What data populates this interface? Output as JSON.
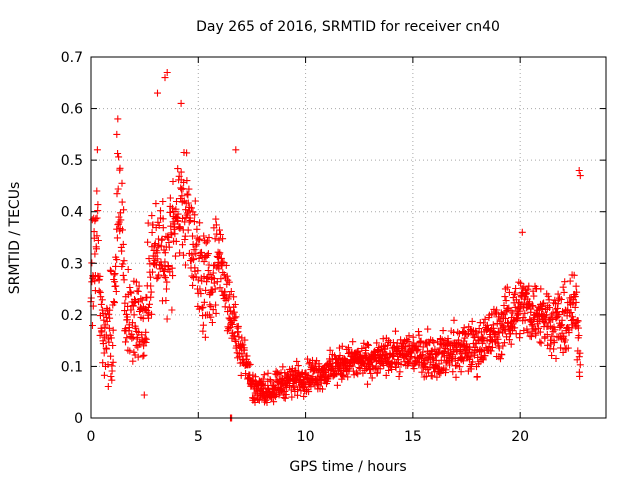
{
  "chart_data": {
    "type": "scatter",
    "title": "Day 265 of 2016, SRMTID for receiver cn40",
    "xlabel": "GPS time / hours",
    "ylabel": "SRMTID / TECUs",
    "xlim": [
      0,
      24
    ],
    "ylim": [
      0,
      0.7
    ],
    "xticks": [
      0,
      5,
      10,
      15,
      20
    ],
    "yticks": [
      0,
      0.1,
      0.2,
      0.3,
      0.4,
      0.5,
      0.6,
      0.7
    ],
    "xtick_labels": [
      "0",
      "5",
      "10",
      "15",
      "20"
    ],
    "ytick_labels": [
      "0",
      "0.1",
      "0.2",
      "0.3",
      "0.4",
      "0.5",
      "0.6",
      "0.7"
    ],
    "grid": true,
    "marker": "+",
    "marker_color": "#ff0000",
    "series": [
      {
        "name": "SRMTID",
        "profile": {
          "x": [
            0,
            0.3,
            0.5,
            1.0,
            1.3,
            1.6,
            2.0,
            2.5,
            3.0,
            3.5,
            4.0,
            4.5,
            5.0,
            5.5,
            6.0,
            6.5,
            6.9,
            7.2,
            7.5,
            8.0,
            9.0,
            10.0,
            11.0,
            12.0,
            13.0,
            14.0,
            15.0,
            16.0,
            17.0,
            18.0,
            19.0,
            20.0,
            21.0,
            22.0,
            22.6,
            22.8
          ],
          "y": [
            0.3,
            0.35,
            0.17,
            0.15,
            0.45,
            0.2,
            0.2,
            0.18,
            0.35,
            0.3,
            0.4,
            0.42,
            0.28,
            0.25,
            0.32,
            0.2,
            0.15,
            0.12,
            0.06,
            0.05,
            0.07,
            0.08,
            0.09,
            0.11,
            0.11,
            0.12,
            0.13,
            0.12,
            0.13,
            0.14,
            0.17,
            0.22,
            0.2,
            0.18,
            0.22,
            0.11
          ]
        },
        "spread": {
          "x": [
            0,
            5,
            6.9,
            7.5,
            14,
            19,
            22.8
          ],
          "y": [
            0.16,
            0.16,
            0.08,
            0.04,
            0.05,
            0.08,
            0.1
          ]
        },
        "n_points": 1800,
        "outliers": [
          {
            "x": 3.55,
            "y": 0.67
          },
          {
            "x": 3.45,
            "y": 0.66
          },
          {
            "x": 3.1,
            "y": 0.63
          },
          {
            "x": 4.2,
            "y": 0.61
          },
          {
            "x": 1.25,
            "y": 0.58
          },
          {
            "x": 1.2,
            "y": 0.55
          },
          {
            "x": 0.3,
            "y": 0.52
          },
          {
            "x": 6.75,
            "y": 0.52
          },
          {
            "x": 22.75,
            "y": 0.48
          },
          {
            "x": 22.8,
            "y": 0.47
          },
          {
            "x": 20.1,
            "y": 0.36
          },
          {
            "x": 6.5,
            "y": 0.0
          },
          {
            "x": 6.55,
            "y": 0.0
          }
        ]
      }
    ]
  }
}
